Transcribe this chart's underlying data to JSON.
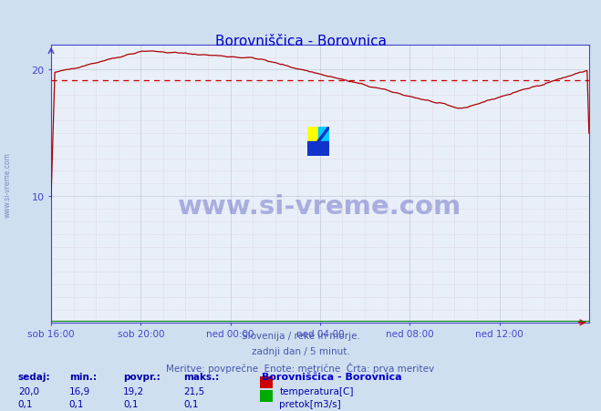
{
  "title": "Borovniščica - Borovnica",
  "title_color": "#0000cc",
  "background_color": "#d0dff0",
  "plot_bg_color": "#e8eff8",
  "grid_color_major": "#aabbcc",
  "xlabel_ticks": [
    "sob 16:00",
    "sob 20:00",
    "ned 00:00",
    "ned 04:00",
    "ned 08:00",
    "ned 12:00"
  ],
  "yticks": [
    10,
    20
  ],
  "ylim": [
    0,
    22
  ],
  "xlim_n": 289,
  "avg_line_value": 19.2,
  "avg_line_color": "#cc0000",
  "temp_line_color": "#aa0000",
  "flow_line_color": "#008800",
  "watermark_text": "www.si-vreme.com",
  "watermark_color": "#1a1aaa",
  "watermark_alpha": 0.3,
  "footer_line1": "Slovenija / reke in morje.",
  "footer_line2": "zadnji dan / 5 minut.",
  "footer_line3": "Meritve: povprečne  Enote: metrične  Črta: prva meritev",
  "footer_color": "#4455aa",
  "legend_title": "Borovniščica - Borovnica",
  "legend_title_color": "#0000cc",
  "legend_items": [
    "temperatura[C]",
    "pretok[m3/s]"
  ],
  "legend_colors": [
    "#cc0000",
    "#00aa00"
  ],
  "stats_headers": [
    "sedaj:",
    "min.:",
    "povpr.:",
    "maks.:"
  ],
  "stats_temp": [
    "20,0",
    "16,9",
    "19,2",
    "21,5"
  ],
  "stats_flow": [
    "0,1",
    "0,1",
    "0,1",
    "0,1"
  ],
  "stats_color": "#0000aa",
  "axis_color": "#4444cc",
  "tick_color": "#4444cc",
  "left_watermark": "www.si-vreme.com"
}
